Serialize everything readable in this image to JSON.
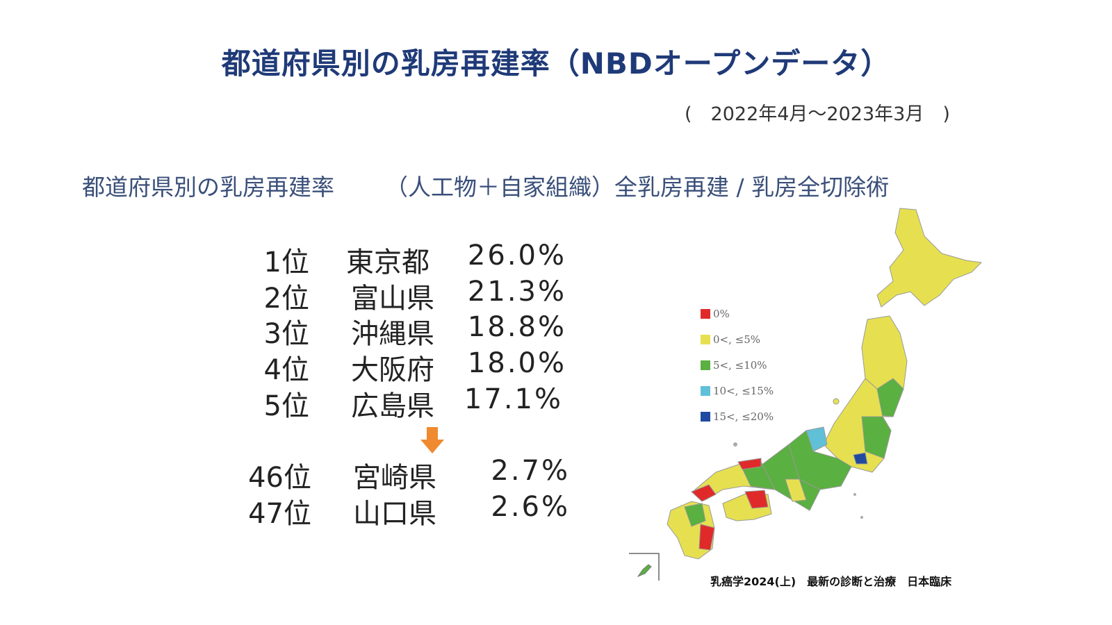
{
  "title": "都道府県別の乳房再建率（NBDオープンデータ）",
  "period": "(　2022年4月～2023年3月　)",
  "heading": {
    "left": "都道府県別の乳房再建率",
    "right": "（人工物＋自家組織）全乳房再建 / 乳房全切除術"
  },
  "ranking": [
    {
      "rank": "1位",
      "prefecture": "東京都",
      "rate": "26.0%"
    },
    {
      "rank": "2位",
      "prefecture": "富山県",
      "rate": "21.3%"
    },
    {
      "rank": "3位",
      "prefecture": "沖縄県",
      "rate": "18.8%"
    },
    {
      "rank": "4位",
      "prefecture": "大阪府",
      "rate": "18.0%"
    },
    {
      "rank": "5位",
      "prefecture": "広島県",
      "rate": "17.1%"
    },
    {
      "rank": "46位",
      "prefecture": "宮崎県",
      "rate": "2.7%"
    },
    {
      "rank": "47位",
      "prefecture": "山口県",
      "rate": "2.6%"
    }
  ],
  "arrow_icon": "down-arrow-icon",
  "arrow_color": "#f08a30",
  "legend": [
    {
      "label": "0%",
      "color": "#e02a2a"
    },
    {
      "label": "0<, ≤5%",
      "color": "#e6e050"
    },
    {
      "label": "5<, ≤10%",
      "color": "#5ab040"
    },
    {
      "label": "10<, ≤15%",
      "color": "#60c0d8"
    },
    {
      "label": "15<, ≤20%",
      "color": "#1f4aa0"
    }
  ],
  "citation": "乳癌学2024(上)　最新の診断と治療　日本臨床"
}
